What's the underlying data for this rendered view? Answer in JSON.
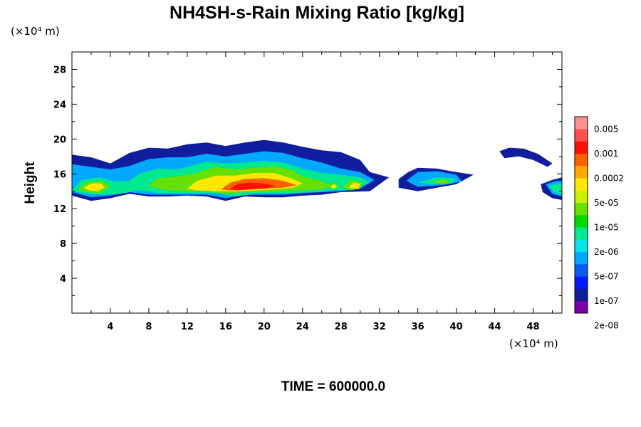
{
  "chart_data": {
    "type": "heatmap",
    "title": "NH4SH-s-Rain Mixing Ratio [kg/kg]",
    "ylabel": "Height",
    "x_unit": "(×10⁴ m)",
    "y_unit": "(×10⁴ m)",
    "footer": "TIME = 600000.0",
    "xlim": [
      0,
      51
    ],
    "ylim": [
      0,
      30
    ],
    "x_ticks": [
      "4",
      "8",
      "12",
      "16",
      "20",
      "24",
      "28",
      "32",
      "36",
      "40",
      "44",
      "48"
    ],
    "y_ticks": [
      "4",
      "8",
      "12",
      "16",
      "20",
      "24",
      "28"
    ],
    "colorbar": {
      "labels": [
        "0.005",
        "0.001",
        "0.0002",
        "5e-05",
        "1e-05",
        "2e-06",
        "5e-07",
        "1e-07",
        "2e-08"
      ],
      "colors": [
        "#7a00a8",
        "#101e9e",
        "#0018ff",
        "#0a5cf5",
        "#00a8ff",
        "#00e6e6",
        "#00e890",
        "#00dc00",
        "#66e000",
        "#ccee00",
        "#ffe800",
        "#ffaa00",
        "#ff6000",
        "#ff1000",
        "#ff5050",
        "#ff9090"
      ]
    },
    "field": [
      {
        "level": 1,
        "points": [
          [
            0,
            15.5
          ],
          [
            0,
            18.2
          ],
          [
            2,
            17.9
          ],
          [
            4,
            17.2
          ],
          [
            6,
            18.4
          ],
          [
            8,
            19.0
          ],
          [
            10,
            18.9
          ],
          [
            12,
            19.4
          ],
          [
            14,
            19.6
          ],
          [
            16,
            19.2
          ],
          [
            18,
            19.6
          ],
          [
            20,
            19.9
          ],
          [
            22,
            19.6
          ],
          [
            24,
            19.1
          ],
          [
            26,
            18.7
          ],
          [
            28,
            18.5
          ],
          [
            30,
            17.6
          ],
          [
            31,
            16.2
          ],
          [
            33,
            15.6
          ],
          [
            31,
            14.0
          ],
          [
            28,
            13.9
          ],
          [
            26,
            13.6
          ],
          [
            24,
            13.5
          ],
          [
            22,
            13.3
          ],
          [
            20,
            13.3
          ],
          [
            18,
            13.4
          ],
          [
            16,
            12.9
          ],
          [
            14,
            13.4
          ],
          [
            12,
            13.5
          ],
          [
            10,
            13.4
          ],
          [
            8,
            13.4
          ],
          [
            6,
            13.7
          ],
          [
            4,
            13.2
          ],
          [
            2,
            12.9
          ],
          [
            0,
            13.5
          ]
        ]
      },
      {
        "level": 1,
        "points": [
          [
            34,
            15.4
          ],
          [
            35,
            16.2
          ],
          [
            36,
            16.7
          ],
          [
            38,
            16.6
          ],
          [
            40,
            16.2
          ],
          [
            41.8,
            15.9
          ],
          [
            40,
            14.8
          ],
          [
            38,
            14.4
          ],
          [
            36,
            14.0
          ],
          [
            34,
            14.4
          ]
        ]
      },
      {
        "level": 1,
        "points": [
          [
            44.5,
            18.6
          ],
          [
            45.5,
            19.0
          ],
          [
            47,
            18.9
          ],
          [
            48.5,
            18.3
          ],
          [
            50,
            17.2
          ],
          [
            49.5,
            16.8
          ],
          [
            48,
            17.6
          ],
          [
            46.5,
            18.0
          ],
          [
            45,
            17.8
          ]
        ]
      },
      {
        "level": 1,
        "points": [
          [
            48.8,
            14.8
          ],
          [
            50,
            15.3
          ],
          [
            51,
            15.6
          ],
          [
            51,
            13.0
          ],
          [
            50,
            13.2
          ],
          [
            49,
            13.9
          ]
        ]
      },
      {
        "level": 4,
        "points": [
          [
            0,
            14.3
          ],
          [
            0,
            17.1
          ],
          [
            2,
            16.8
          ],
          [
            4,
            16.5
          ],
          [
            6,
            16.9
          ],
          [
            8,
            17.7
          ],
          [
            10,
            17.9
          ],
          [
            12,
            17.9
          ],
          [
            14,
            18.3
          ],
          [
            16,
            18.0
          ],
          [
            18,
            18.3
          ],
          [
            20,
            18.6
          ],
          [
            22,
            18.4
          ],
          [
            24,
            17.8
          ],
          [
            26,
            17.3
          ],
          [
            28,
            16.6
          ],
          [
            30,
            16.2
          ],
          [
            31.5,
            15.3
          ],
          [
            30,
            14.3
          ],
          [
            28,
            14.0
          ],
          [
            26,
            13.9
          ],
          [
            24,
            13.8
          ],
          [
            22,
            13.6
          ],
          [
            20,
            13.6
          ],
          [
            18,
            13.6
          ],
          [
            16,
            13.2
          ],
          [
            14,
            13.6
          ],
          [
            12,
            13.6
          ],
          [
            10,
            13.6
          ],
          [
            8,
            13.6
          ],
          [
            6,
            13.9
          ],
          [
            4,
            13.5
          ],
          [
            2,
            13.3
          ],
          [
            0,
            13.9
          ]
        ]
      },
      {
        "level": 4,
        "points": [
          [
            34.8,
            15.2
          ],
          [
            36,
            16.2
          ],
          [
            38,
            16.3
          ],
          [
            40,
            15.9
          ],
          [
            40.6,
            15.1
          ],
          [
            38.5,
            14.7
          ],
          [
            36,
            14.5
          ]
        ]
      },
      {
        "level": 4,
        "points": [
          [
            49.3,
            14.8
          ],
          [
            50.5,
            15.2
          ],
          [
            51,
            15.2
          ],
          [
            51,
            13.4
          ],
          [
            50,
            13.7
          ]
        ]
      },
      {
        "level": 6,
        "points": [
          [
            0,
            14.1
          ],
          [
            1,
            15.3
          ],
          [
            3,
            15.6
          ],
          [
            4.5,
            15.1
          ],
          [
            6,
            15.2
          ],
          [
            7,
            16.0
          ],
          [
            9,
            16.6
          ],
          [
            11,
            16.5
          ],
          [
            12,
            16.8
          ],
          [
            14,
            17.4
          ],
          [
            16,
            17.2
          ],
          [
            18,
            17.3
          ],
          [
            20,
            17.5
          ],
          [
            22,
            17.3
          ],
          [
            24,
            16.6
          ],
          [
            26,
            16.1
          ],
          [
            28,
            15.9
          ],
          [
            30,
            15.6
          ],
          [
            31,
            15.0
          ],
          [
            29,
            14.2
          ],
          [
            27,
            14.1
          ],
          [
            25,
            13.9
          ],
          [
            23,
            13.8
          ],
          [
            21,
            13.8
          ],
          [
            19,
            13.7
          ],
          [
            17,
            13.4
          ],
          [
            15,
            13.8
          ],
          [
            13,
            13.8
          ],
          [
            11,
            13.8
          ],
          [
            9,
            13.8
          ],
          [
            7,
            14.1
          ],
          [
            5,
            13.7
          ],
          [
            3,
            13.6
          ],
          [
            1,
            13.8
          ]
        ]
      },
      {
        "level": 6,
        "points": [
          [
            36,
            15.0
          ],
          [
            38,
            15.6
          ],
          [
            39.8,
            15.5
          ],
          [
            39.6,
            14.9
          ],
          [
            37.5,
            14.8
          ]
        ]
      },
      {
        "level": 6,
        "points": [
          [
            49.6,
            14.6
          ],
          [
            50.6,
            14.9
          ],
          [
            51,
            14.8
          ],
          [
            51,
            13.6
          ],
          [
            50.2,
            13.9
          ]
        ]
      },
      {
        "level": 8,
        "points": [
          [
            0.6,
            14.2
          ],
          [
            1.5,
            15.0
          ],
          [
            3,
            15.2
          ],
          [
            4,
            14.6
          ],
          [
            3,
            13.8
          ],
          [
            1.5,
            13.9
          ]
        ]
      },
      {
        "level": 8,
        "points": [
          [
            8,
            14.6
          ],
          [
            9,
            15.5
          ],
          [
            11,
            15.7
          ],
          [
            13,
            16.1
          ],
          [
            15,
            16.8
          ],
          [
            17,
            16.5
          ],
          [
            19,
            16.7
          ],
          [
            21,
            16.9
          ],
          [
            23,
            16.4
          ],
          [
            24,
            15.7
          ],
          [
            26,
            15.2
          ],
          [
            27,
            14.6
          ],
          [
            26,
            14.2
          ],
          [
            24,
            14.1
          ],
          [
            22,
            14.0
          ],
          [
            20,
            13.9
          ],
          [
            18,
            13.9
          ],
          [
            16,
            13.7
          ],
          [
            14,
            14.0
          ],
          [
            12,
            14.0
          ],
          [
            10,
            14.1
          ]
        ]
      },
      {
        "level": 8,
        "points": [
          [
            28.2,
            14.5
          ],
          [
            29,
            15.3
          ],
          [
            30.3,
            15.0
          ],
          [
            30,
            14.3
          ],
          [
            29,
            14.1
          ]
        ]
      },
      {
        "level": 8,
        "points": [
          [
            26.5,
            14.6
          ],
          [
            27.2,
            15.0
          ],
          [
            27.8,
            14.6
          ],
          [
            27.2,
            14.2
          ]
        ]
      },
      {
        "level": 8,
        "points": [
          [
            37.5,
            15.1
          ],
          [
            38.8,
            15.4
          ],
          [
            39.4,
            15.0
          ],
          [
            38.5,
            14.8
          ]
        ]
      },
      {
        "level": 10,
        "points": [
          [
            1.2,
            14.4
          ],
          [
            2,
            14.9
          ],
          [
            3,
            14.9
          ],
          [
            3.4,
            14.4
          ],
          [
            2.6,
            14.0
          ],
          [
            1.8,
            14.1
          ]
        ]
      },
      {
        "level": 10,
        "points": [
          [
            12,
            14.3
          ],
          [
            13,
            15.2
          ],
          [
            15,
            15.8
          ],
          [
            17,
            15.8
          ],
          [
            19,
            16.1
          ],
          [
            21,
            16.1
          ],
          [
            22.8,
            15.5
          ],
          [
            24,
            14.9
          ],
          [
            23,
            14.4
          ],
          [
            21,
            14.2
          ],
          [
            19,
            14.1
          ],
          [
            17,
            14.0
          ],
          [
            15,
            14.0
          ],
          [
            13,
            14.1
          ]
        ]
      },
      {
        "level": 10,
        "points": [
          [
            28.8,
            14.4
          ],
          [
            29.3,
            15.0
          ],
          [
            30,
            14.8
          ],
          [
            29.8,
            14.3
          ]
        ]
      },
      {
        "level": 10,
        "points": [
          [
            26.9,
            14.5
          ],
          [
            27.3,
            14.8
          ],
          [
            27.6,
            14.5
          ],
          [
            27.2,
            14.3
          ]
        ]
      },
      {
        "level": 12,
        "points": [
          [
            15.5,
            14.2
          ],
          [
            16.5,
            15.0
          ],
          [
            18,
            15.4
          ],
          [
            20,
            15.5
          ],
          [
            22,
            15.2
          ],
          [
            23.4,
            14.7
          ],
          [
            22,
            14.4
          ],
          [
            20,
            14.3
          ],
          [
            18,
            14.2
          ],
          [
            16.5,
            14.1
          ]
        ]
      },
      {
        "level": 13,
        "points": [
          [
            16.4,
            14.2
          ],
          [
            17.2,
            14.8
          ],
          [
            18.5,
            15.0
          ],
          [
            20,
            14.9
          ],
          [
            21.2,
            14.6
          ],
          [
            20,
            14.3
          ],
          [
            18.5,
            14.2
          ],
          [
            17.2,
            14.1
          ]
        ]
      }
    ]
  }
}
